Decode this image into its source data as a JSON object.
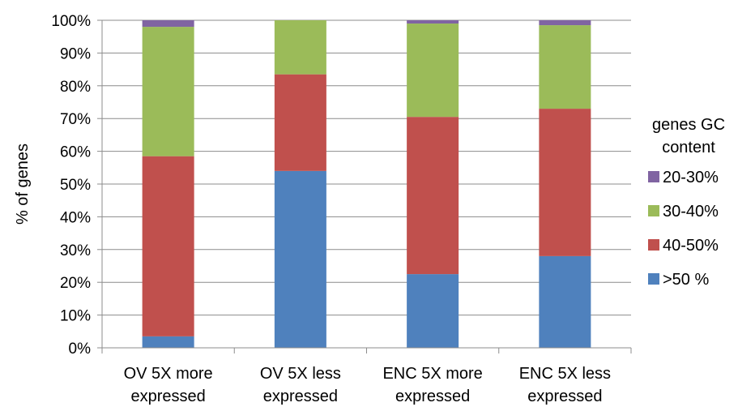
{
  "chart_data": {
    "type": "bar",
    "stacked": "percent",
    "categories": [
      [
        "OV 5X more",
        "expressed"
      ],
      [
        "OV 5X less",
        "expressed"
      ],
      [
        "ENC 5X more",
        "expressed"
      ],
      [
        "ENC  5X less",
        "expressed"
      ]
    ],
    "series": [
      {
        "name": ">50 %",
        "color": "#4f81bd",
        "values": [
          3.5,
          54,
          22.5,
          28
        ]
      },
      {
        "name": "40-50%",
        "color": "#c0504d",
        "values": [
          55,
          29.5,
          48,
          45
        ]
      },
      {
        "name": "30-40%",
        "color": "#9bbb59",
        "values": [
          39.5,
          16.5,
          28.5,
          25.5
        ]
      },
      {
        "name": "20-30%",
        "color": "#8064a2",
        "values": [
          2,
          0,
          1,
          1.5
        ]
      }
    ],
    "ylabel": "% of genes",
    "ylim": [
      0,
      100
    ],
    "yticks": [
      "0%",
      "10%",
      "20%",
      "30%",
      "40%",
      "50%",
      "60%",
      "70%",
      "80%",
      "90%",
      "100%"
    ],
    "grid": true,
    "legend": {
      "title": [
        "genes GC",
        "content"
      ],
      "placement": "right",
      "order": [
        "20-30%",
        "30-40%",
        "40-50%",
        ">50 %"
      ]
    }
  }
}
